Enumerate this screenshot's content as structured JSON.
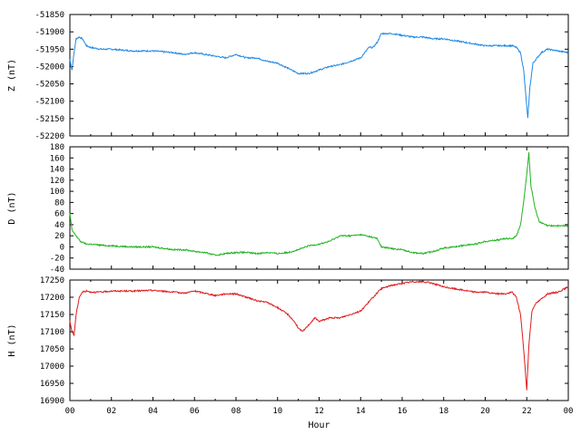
{
  "chart_data": [
    {
      "type": "line",
      "ylabel": "Z (nT)",
      "xlabel": "",
      "ylim": [
        -52200,
        -51850
      ],
      "yticks": [
        -51850,
        -51900,
        -51950,
        -52000,
        -52050,
        -52100,
        -52150,
        -52200
      ],
      "xlim": [
        0,
        24
      ],
      "color": "#1e88e5",
      "series": [
        {
          "x": [
            0,
            0.1,
            0.2,
            0.3,
            0.45,
            0.6,
            0.8,
            1,
            1.5,
            2,
            3,
            4,
            5,
            5.5,
            6,
            6.5,
            7,
            7.5,
            8,
            8.5,
            9,
            9.5,
            10,
            10.5,
            11,
            11.5,
            12,
            12.5,
            13,
            13.5,
            14,
            14.2,
            14.4,
            14.6,
            14.8,
            15,
            15.5,
            16,
            16.5,
            17,
            17.5,
            18,
            18.5,
            19,
            19.5,
            20,
            20.5,
            21,
            21.3,
            21.5,
            21.7,
            21.85,
            21.95,
            22.05,
            22.15,
            22.3,
            22.5,
            22.7,
            23,
            23.5,
            24
          ],
          "y": [
            -51980,
            -52010,
            -51960,
            -51920,
            -51915,
            -51920,
            -51940,
            -51945,
            -51950,
            -51950,
            -51955,
            -51955,
            -51960,
            -51965,
            -51960,
            -51965,
            -51970,
            -51975,
            -51965,
            -51975,
            -51975,
            -51985,
            -51990,
            -52005,
            -52020,
            -52020,
            -52010,
            -52000,
            -51995,
            -51985,
            -51975,
            -51960,
            -51945,
            -51945,
            -51930,
            -51905,
            -51905,
            -51910,
            -51915,
            -51915,
            -51920,
            -51920,
            -51925,
            -51930,
            -51935,
            -51940,
            -51940,
            -51940,
            -51940,
            -51945,
            -51960,
            -52010,
            -52080,
            -52150,
            -52060,
            -51990,
            -51975,
            -51960,
            -51950,
            -51955,
            -51960
          ]
        }
      ]
    },
    {
      "type": "line",
      "ylabel": "D (nT)",
      "xlabel": "",
      "ylim": [
        -40,
        180
      ],
      "yticks": [
        180,
        160,
        140,
        120,
        100,
        80,
        60,
        40,
        20,
        0,
        -20,
        -40
      ],
      "xlim": [
        0,
        24
      ],
      "color": "#22b322",
      "series": [
        {
          "x": [
            0,
            0.1,
            0.3,
            0.5,
            0.8,
            1,
            1.5,
            2,
            3,
            4,
            5,
            5.5,
            6,
            6.5,
            7,
            7.5,
            8,
            8.5,
            9,
            9.5,
            10,
            10.5,
            11,
            11.5,
            12,
            12.5,
            13,
            13.5,
            14,
            14.5,
            14.8,
            15,
            15.5,
            16,
            16.5,
            17,
            17.5,
            18,
            18.5,
            19,
            19.5,
            20,
            20.5,
            21,
            21.3,
            21.5,
            21.7,
            21.85,
            22,
            22.1,
            22.2,
            22.4,
            22.6,
            23,
            23.5,
            24
          ],
          "y": [
            60,
            30,
            20,
            10,
            5,
            5,
            3,
            2,
            0,
            0,
            -5,
            -5,
            -8,
            -10,
            -15,
            -12,
            -10,
            -10,
            -12,
            -10,
            -12,
            -10,
            -5,
            2,
            5,
            10,
            20,
            20,
            22,
            18,
            15,
            0,
            -3,
            -5,
            -10,
            -12,
            -8,
            -2,
            0,
            3,
            5,
            10,
            12,
            15,
            15,
            20,
            40,
            80,
            130,
            170,
            110,
            70,
            45,
            38,
            38,
            38
          ]
        }
      ]
    },
    {
      "type": "line",
      "ylabel": "H (nT)",
      "xlabel": "Hour",
      "ylim": [
        16900,
        17250
      ],
      "yticks": [
        17250,
        17200,
        17150,
        17100,
        17050,
        17000,
        16950,
        16900
      ],
      "xlim": [
        0,
        24
      ],
      "xticks": [
        "00",
        "02",
        "04",
        "06",
        "08",
        "10",
        "12",
        "14",
        "16",
        "18",
        "20",
        "22",
        "00"
      ],
      "color": "#e01b1b",
      "series": [
        {
          "x": [
            0,
            0.1,
            0.2,
            0.3,
            0.45,
            0.6,
            0.8,
            1,
            1.5,
            2,
            3,
            4,
            5,
            5.5,
            6,
            6.5,
            7,
            7.5,
            8,
            8.5,
            9,
            9.5,
            10,
            10.5,
            10.8,
            11,
            11.2,
            11.5,
            11.8,
            12,
            12.5,
            13,
            13.5,
            14,
            14.3,
            14.6,
            15,
            15.5,
            16,
            16.5,
            17,
            17.5,
            18,
            18.5,
            19,
            19.5,
            20,
            20.5,
            21,
            21.3,
            21.5,
            21.7,
            21.85,
            22,
            22.1,
            22.25,
            22.4,
            22.6,
            23,
            23.5,
            24
          ],
          "y": [
            17130,
            17100,
            17090,
            17150,
            17200,
            17215,
            17218,
            17215,
            17215,
            17218,
            17218,
            17220,
            17215,
            17212,
            17218,
            17212,
            17205,
            17210,
            17210,
            17200,
            17190,
            17185,
            17170,
            17150,
            17130,
            17110,
            17100,
            17120,
            17140,
            17130,
            17140,
            17140,
            17150,
            17160,
            17180,
            17200,
            17225,
            17235,
            17240,
            17245,
            17245,
            17240,
            17230,
            17225,
            17220,
            17215,
            17215,
            17210,
            17210,
            17215,
            17200,
            17150,
            17050,
            16930,
            17060,
            17160,
            17180,
            17190,
            17210,
            17215,
            17230
          ]
        }
      ]
    }
  ]
}
